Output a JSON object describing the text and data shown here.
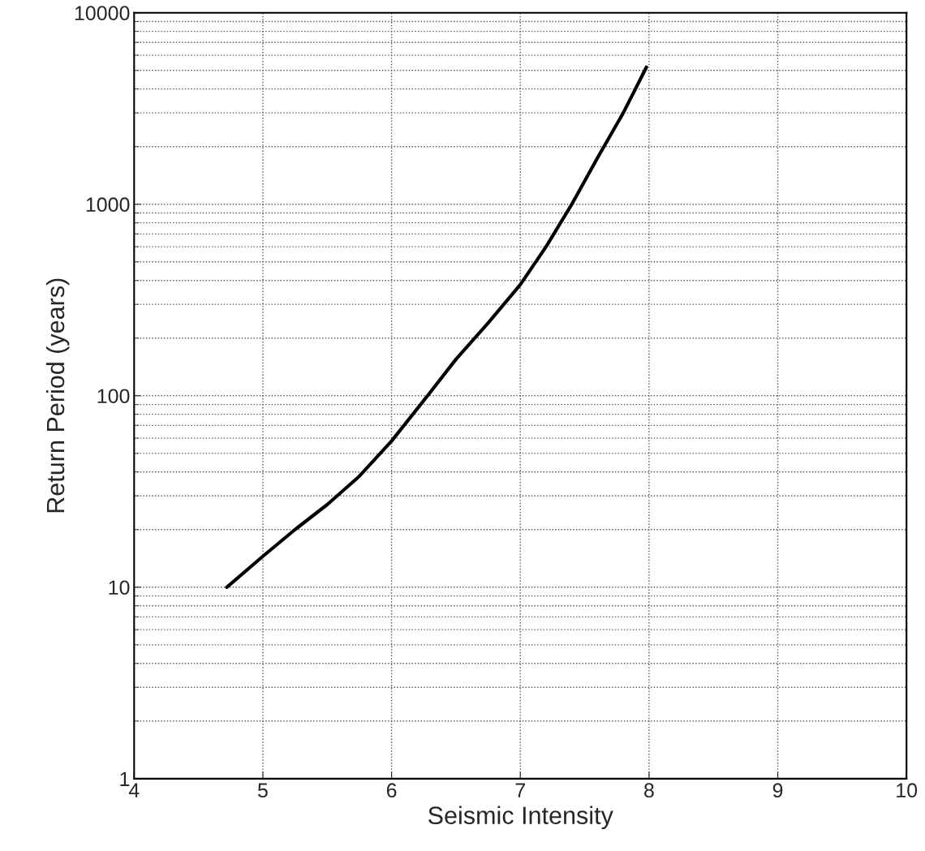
{
  "chart_data": {
    "type": "line",
    "xlabel": "Seismic Intensity",
    "ylabel": "Return Period (years)",
    "x": [
      4.72,
      5.0,
      5.25,
      5.5,
      5.75,
      6.0,
      6.28,
      6.5,
      6.75,
      7.0,
      7.2,
      7.4,
      7.6,
      7.8,
      7.98
    ],
    "series": [
      {
        "color": "#000000",
        "values": [
          10,
          14.5,
          20,
          27,
          38,
          58,
          100,
          155,
          240,
          380,
          600,
          1000,
          1750,
          3000,
          5200
        ]
      }
    ],
    "log": "y",
    "xlim": [
      4,
      10
    ],
    "ylim": [
      1,
      10000
    ],
    "xticks": [
      4,
      5,
      6,
      7,
      8,
      9,
      10
    ],
    "yticks": [
      1,
      10,
      100,
      1000,
      10000
    ],
    "grid": true,
    "line_style": "solid",
    "marker": "none"
  }
}
